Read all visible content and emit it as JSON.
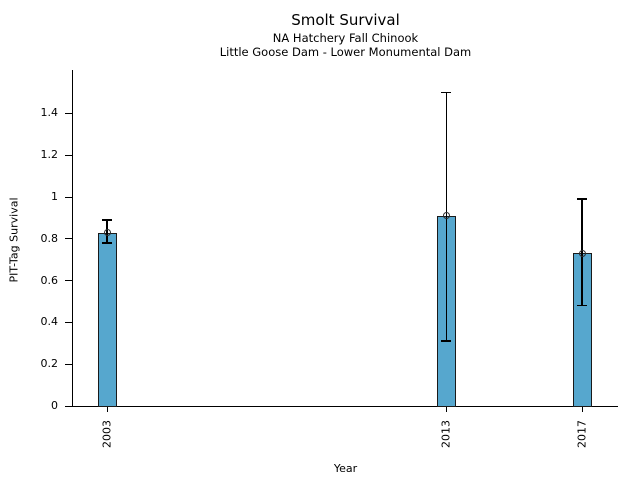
{
  "chart": {
    "bar_color": "#56A7CE",
    "bar_edge_color": "#1a1a1a",
    "axis_color": "#000000"
  },
  "chart_data": {
    "type": "bar",
    "title": "Smolt Survival",
    "subtitle": [
      "NA Hatchery Fall Chinook",
      "Little Goose Dam - Lower Monumental Dam"
    ],
    "xlabel": "Year",
    "ylabel": "PIT-Tag Survival",
    "categories": [
      "2003",
      "2013",
      "2017"
    ],
    "values": [
      0.83,
      0.91,
      0.73
    ],
    "error_low": [
      0.78,
      0.31,
      0.48
    ],
    "error_high": [
      0.89,
      1.5,
      0.99
    ],
    "marker": "open-circle",
    "bar_color": "#56A7CE",
    "ylim": [
      0,
      1.55
    ],
    "yticks": [
      0,
      0.2,
      0.4,
      0.6,
      0.8,
      1,
      1.2,
      1.4
    ],
    "ytick_labels": [
      "0",
      "0.2",
      "0.4",
      "0.6",
      "0.8",
      "1",
      "1.2",
      "1.4"
    ],
    "grid": false,
    "legend": null
  }
}
